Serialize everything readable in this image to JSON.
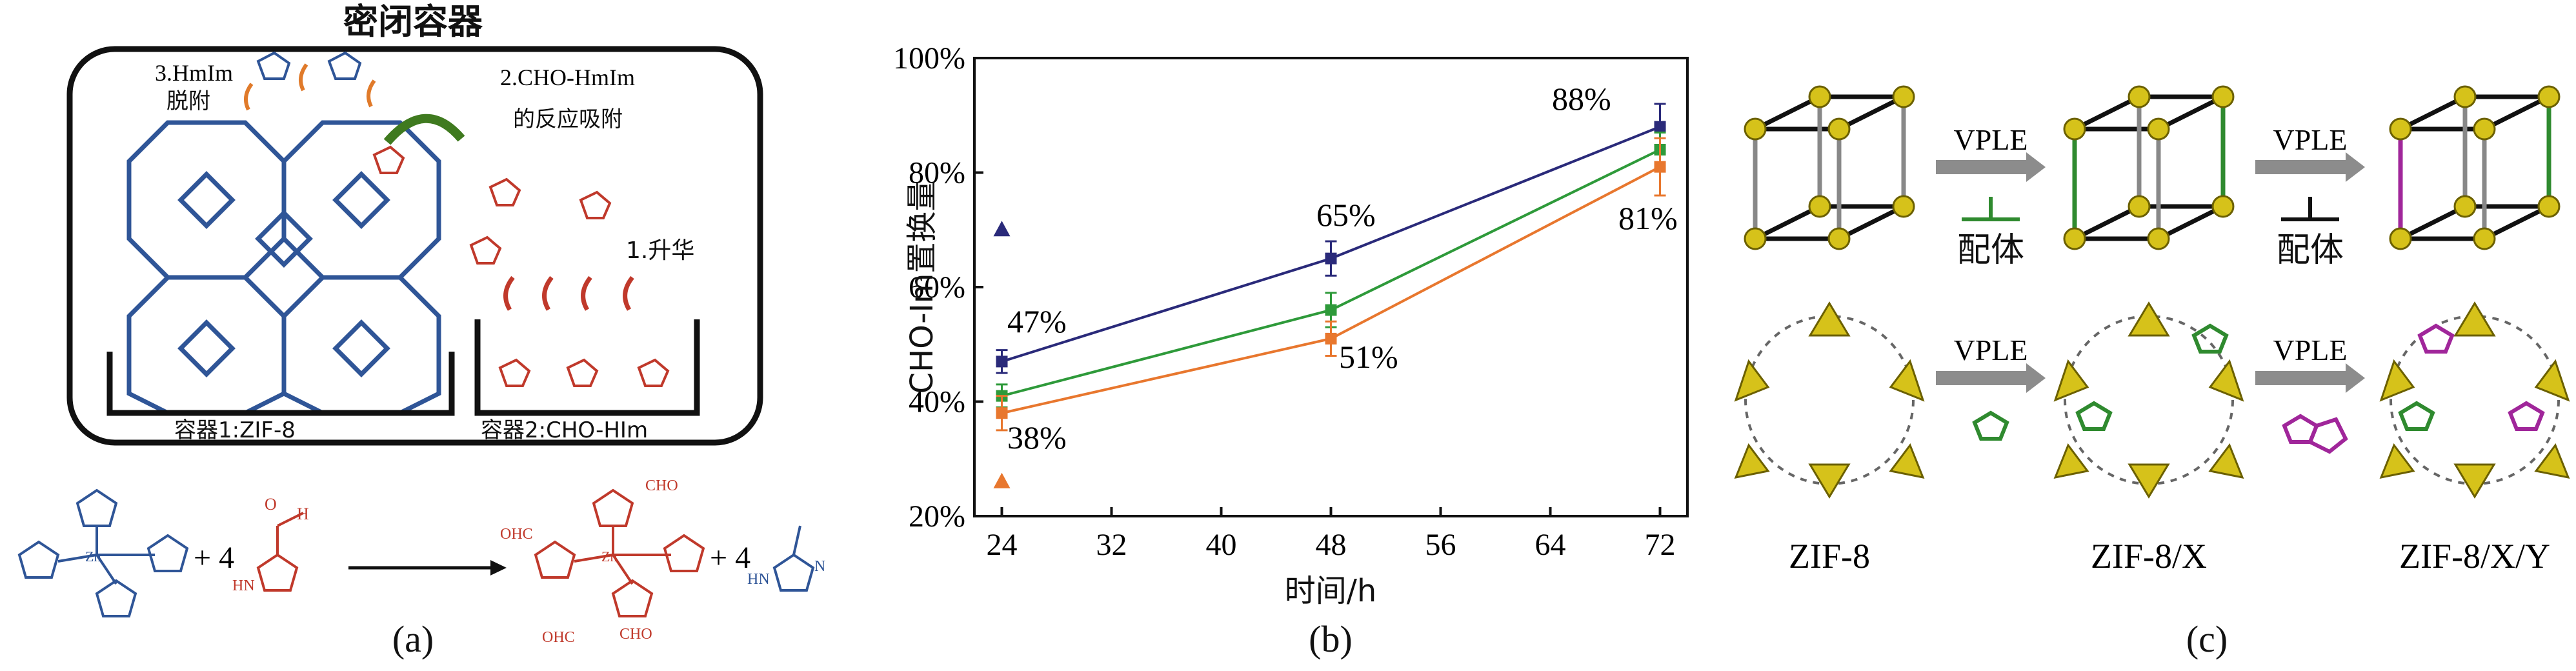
{
  "panel_a": {
    "title": "密闭容器",
    "step3_line1": "3.HmIm",
    "step3_line2": "脱附",
    "step2_line1": "2.CHO-HmIm",
    "step2_line2": "的反应吸附",
    "step1": "1.升华",
    "container1": "容器1:ZIF-8",
    "container2": "容器2:CHO-HIm",
    "plus4_left": "+ 4",
    "plus4_right": "+ 4",
    "cho": "CHO",
    "ohc": "OHC",
    "hn": "HN",
    "h": "H",
    "o": "O",
    "n": "N",
    "zn": "Zn",
    "caption": "(a)",
    "colors": {
      "framework": "#2f5597",
      "cho_red": "#c0392b",
      "arrow_green": "#3f7a1f"
    }
  },
  "panel_b": {
    "caption": "(b)",
    "chart_data": {
      "type": "line",
      "xlabel": "时间/h",
      "ylabel": "CHO-Im置换量",
      "x_ticks": [
        24,
        32,
        40,
        48,
        56,
        64,
        72
      ],
      "y_ticks": [
        "20%",
        "40%",
        "60%",
        "80%",
        "100%"
      ],
      "xlim": [
        22,
        74
      ],
      "ylim": [
        20,
        100
      ],
      "grid": false,
      "series": [
        {
          "color": "#2a2a7a",
          "x": [
            24,
            48,
            72
          ],
          "values": [
            47,
            65,
            88
          ],
          "err": [
            2,
            3,
            4
          ]
        },
        {
          "color": "#2e9a3a",
          "x": [
            24,
            48,
            72
          ],
          "values": [
            41,
            56,
            84
          ],
          "err": [
            2,
            3,
            3
          ]
        },
        {
          "color": "#e8772e",
          "x": [
            24,
            48,
            72
          ],
          "values": [
            38,
            51,
            81
          ],
          "err": [
            3,
            3,
            5
          ]
        }
      ],
      "outliers": [
        {
          "x": 24,
          "y": 70,
          "color": "#2a2a7a"
        },
        {
          "x": 24,
          "y": 26,
          "color": "#e8772e"
        }
      ],
      "annotations": [
        "47%",
        "38%",
        "65%",
        "51%",
        "88%",
        "81%"
      ]
    }
  },
  "panel_c": {
    "vple1": "VPLE",
    "vple2": "VPLE",
    "vple3": "VPLE",
    "vple4": "VPLE",
    "ligand1": "配体",
    "ligand2": "配体",
    "zif8": "ZIF-8",
    "zif8x": "ZIF-8/X",
    "zif8xy": "ZIF-8/X/Y",
    "caption": "(c)",
    "colors": {
      "node_yellow": "#d6c21a",
      "green": "#2f8a2f",
      "magenta": "#a0269a",
      "arrow_grey": "#8c8c8c"
    }
  }
}
